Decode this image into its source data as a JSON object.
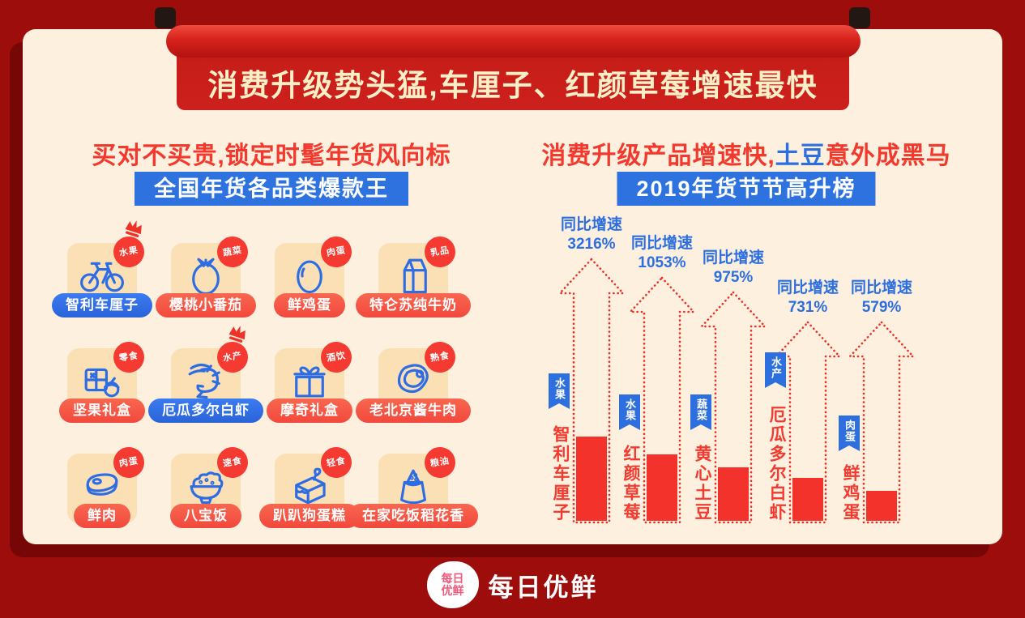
{
  "banner": {
    "title": "消费升级势头猛,车厘子、红颜草莓增速最快"
  },
  "left": {
    "heading": "买对不买贵,锁定时髦年货风向标",
    "subheading": "全国年货各品类爆款王",
    "items": [
      {
        "label": "智利车厘子",
        "category": "水果",
        "icon": "bicycle-icon",
        "pill": "blue",
        "crown": true
      },
      {
        "label": "樱桃小番茄",
        "category": "蔬菜",
        "icon": "tomato-icon",
        "pill": "red",
        "crown": false
      },
      {
        "label": "鲜鸡蛋",
        "category": "肉蛋",
        "icon": "egg-icon",
        "pill": "red",
        "crown": false
      },
      {
        "label": "特仑苏纯牛奶",
        "category": "乳品",
        "icon": "milk-carton-icon",
        "pill": "red",
        "crown": false
      },
      {
        "label": "坚果礼盒",
        "category": "零食",
        "icon": "nut-giftbox-icon",
        "pill": "red",
        "crown": false
      },
      {
        "label": "厄瓜多尔白虾",
        "category": "水产",
        "icon": "shrimp-icon",
        "pill": "blue",
        "crown": true
      },
      {
        "label": "摩奇礼盒",
        "category": "酒饮",
        "icon": "giftbox-icon",
        "pill": "red",
        "crown": false
      },
      {
        "label": "老北京酱牛肉",
        "category": "熟食",
        "icon": "beef-icon",
        "pill": "red",
        "crown": false
      },
      {
        "label": "鲜肉",
        "category": "肉蛋",
        "icon": "meat-icon",
        "pill": "red",
        "crown": false
      },
      {
        "label": "八宝饭",
        "category": "速食",
        "icon": "rice-bowl-icon",
        "pill": "red",
        "crown": false
      },
      {
        "label": "趴趴狗蛋糕",
        "category": "轻食",
        "icon": "cake-icon",
        "pill": "red",
        "crown": false
      },
      {
        "label": "在家吃饭稻花香",
        "category": "粮油",
        "icon": "rice-sack-icon",
        "pill": "red",
        "crown": false
      }
    ]
  },
  "right": {
    "heading_red1": "消费升级产品增速快,",
    "heading_blue": "土豆",
    "heading_red2": "意外成黑马",
    "subheading": "2019年货节节高升榜"
  },
  "chart_data": {
    "type": "bar",
    "title": "2019年货节节高升榜",
    "growth_label": "同比增速",
    "categories": [
      "智利车厘子",
      "红颜草莓",
      "黄心土豆",
      "厄瓜多尔白虾",
      "鲜鸡蛋"
    ],
    "category_tags": [
      "水果",
      "水果",
      "蔬菜",
      "水产",
      "肉蛋"
    ],
    "values_pct": [
      3216,
      1053,
      975,
      731,
      579
    ],
    "value_labels": [
      "3216%",
      "1053%",
      "975%",
      "731%",
      "579%"
    ],
    "bar_color": "#f3322b",
    "arrow_color": "#ea2f28",
    "legend_position": "none",
    "grid": false
  },
  "footer": {
    "brand": "每日优鲜",
    "logo_line1": "每日",
    "logo_line2": "优鲜"
  },
  "colors": {
    "page_background": "#9c0d0b",
    "card_background": "#fdf0de",
    "banner_red": "#cd201c",
    "banner_text": "#faefc7",
    "heading_red": "#f2392e",
    "accent_blue": "#2e72e0",
    "tile_peach": "#fbe0b6",
    "pill_red": "#f2493d",
    "badge_red": "#f43a31"
  }
}
